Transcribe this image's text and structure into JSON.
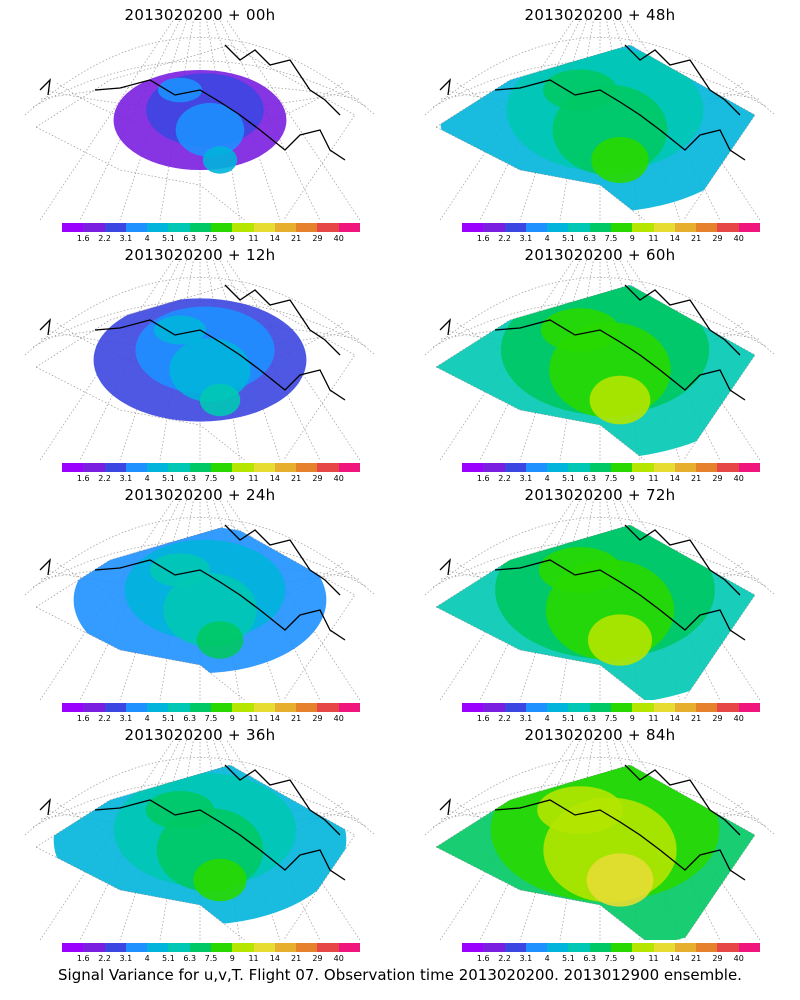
{
  "panels": [
    {
      "title": "2013020200 + 00h",
      "level": 0.15
    },
    {
      "title": "2013020200 + 12h",
      "level": 0.3
    },
    {
      "title": "2013020200 + 24h",
      "level": 0.45
    },
    {
      "title": "2013020200 + 36h",
      "level": 0.6
    },
    {
      "title": "2013020200 + 48h",
      "level": 0.7
    },
    {
      "title": "2013020200 + 60h",
      "level": 0.78
    },
    {
      "title": "2013020200 + 72h",
      "level": 0.86
    },
    {
      "title": "2013020200 + 84h",
      "level": 0.92
    }
  ],
  "colorbar": {
    "colors": [
      "#9b00ff",
      "#7a1fe0",
      "#3c46e0",
      "#1e90ff",
      "#00b4dc",
      "#00c8b4",
      "#00c864",
      "#28d800",
      "#b4e600",
      "#e6dc32",
      "#e6af2d",
      "#e6822d",
      "#e64646",
      "#f0147d"
    ],
    "labels": [
      "1.6",
      "2.2",
      "3.1",
      "4",
      "5.1",
      "6.3",
      "7.5",
      "9",
      "11",
      "14",
      "21",
      "29",
      "40"
    ]
  },
  "caption": "Signal Variance for u,v,T. Flight 07. Observation time 2013020200. 2013012900 ensemble."
}
